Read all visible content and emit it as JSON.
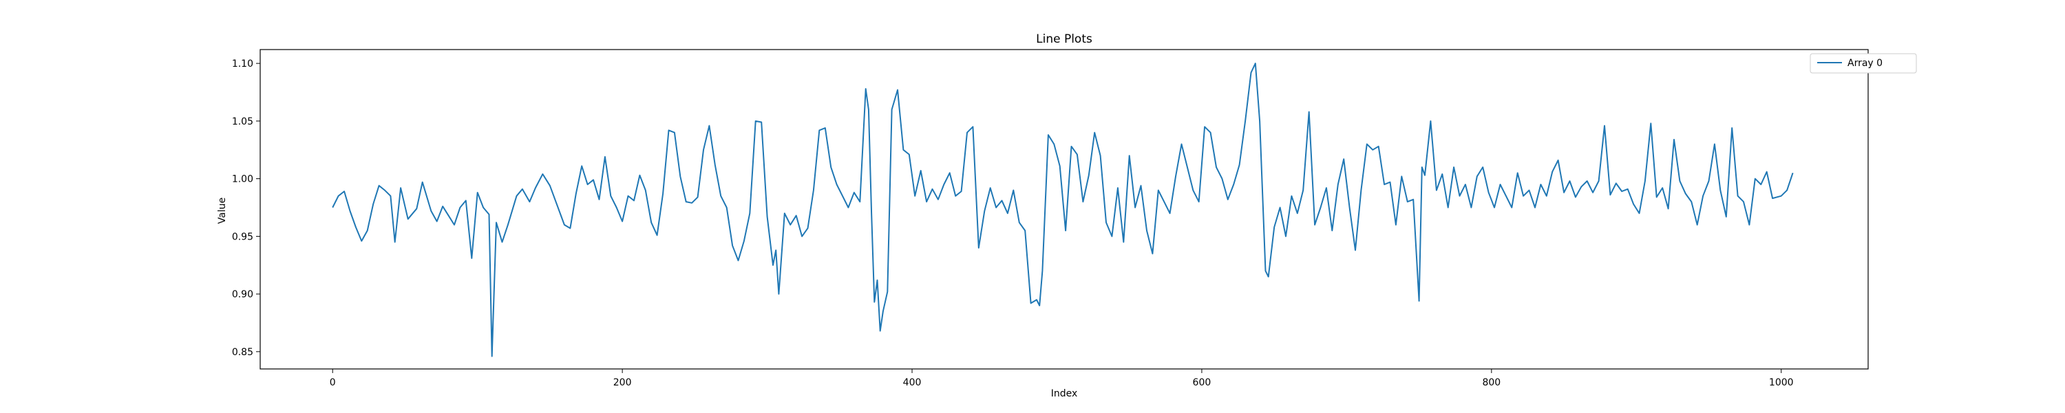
{
  "chart_data": {
    "type": "line",
    "title": "Line Plots",
    "xlabel": "Index",
    "ylabel": "Value",
    "xlim": [
      -50,
      1060
    ],
    "ylim": [
      0.835,
      1.112
    ],
    "xticks": [
      0,
      200,
      400,
      600,
      800,
      1000
    ],
    "yticks": [
      0.85,
      0.9,
      0.95,
      1.0,
      1.05,
      1.1
    ],
    "ytick_labels": [
      "0.85",
      "0.90",
      "0.95",
      "1.00",
      "1.05",
      "1.10"
    ],
    "grid": false,
    "legend_position": "top-right",
    "series": [
      {
        "name": "Array 0",
        "color": "#1f77b4",
        "points": [
          [
            0,
            0.975
          ],
          [
            4,
            0.985
          ],
          [
            8,
            0.989
          ],
          [
            12,
            0.972
          ],
          [
            16,
            0.958
          ],
          [
            20,
            0.946
          ],
          [
            24,
            0.955
          ],
          [
            28,
            0.978
          ],
          [
            32,
            0.994
          ],
          [
            36,
            0.99
          ],
          [
            40,
            0.985
          ],
          [
            43,
            0.945
          ],
          [
            47,
            0.992
          ],
          [
            52,
            0.965
          ],
          [
            58,
            0.974
          ],
          [
            62,
            0.997
          ],
          [
            68,
            0.972
          ],
          [
            72,
            0.963
          ],
          [
            76,
            0.976
          ],
          [
            80,
            0.968
          ],
          [
            84,
            0.96
          ],
          [
            88,
            0.975
          ],
          [
            92,
            0.981
          ],
          [
            96,
            0.931
          ],
          [
            100,
            0.988
          ],
          [
            104,
            0.975
          ],
          [
            108,
            0.969
          ],
          [
            110,
            0.846
          ],
          [
            113,
            0.962
          ],
          [
            117,
            0.945
          ],
          [
            121,
            0.96
          ],
          [
            127,
            0.985
          ],
          [
            131,
            0.991
          ],
          [
            136,
            0.98
          ],
          [
            140,
            0.992
          ],
          [
            145,
            1.004
          ],
          [
            150,
            0.994
          ],
          [
            155,
            0.977
          ],
          [
            160,
            0.96
          ],
          [
            164,
            0.957
          ],
          [
            168,
            0.987
          ],
          [
            172,
            1.011
          ],
          [
            176,
            0.995
          ],
          [
            180,
            0.999
          ],
          [
            184,
            0.982
          ],
          [
            188,
            1.019
          ],
          [
            192,
            0.985
          ],
          [
            196,
            0.975
          ],
          [
            200,
            0.963
          ],
          [
            204,
            0.985
          ],
          [
            208,
            0.981
          ],
          [
            212,
            1.003
          ],
          [
            216,
            0.99
          ],
          [
            220,
            0.962
          ],
          [
            224,
            0.951
          ],
          [
            228,
            0.987
          ],
          [
            232,
            1.042
          ],
          [
            236,
            1.04
          ],
          [
            240,
            1.002
          ],
          [
            244,
            0.98
          ],
          [
            248,
            0.979
          ],
          [
            252,
            0.984
          ],
          [
            256,
            1.025
          ],
          [
            260,
            1.046
          ],
          [
            264,
            1.012
          ],
          [
            268,
            0.985
          ],
          [
            272,
            0.975
          ],
          [
            276,
            0.942
          ],
          [
            280,
            0.929
          ],
          [
            284,
            0.946
          ],
          [
            288,
            0.97
          ],
          [
            292,
            1.05
          ],
          [
            296,
            1.049
          ],
          [
            300,
            0.967
          ],
          [
            304,
            0.925
          ],
          [
            306,
            0.938
          ],
          [
            308,
            0.9
          ],
          [
            312,
            0.97
          ],
          [
            316,
            0.96
          ],
          [
            320,
            0.968
          ],
          [
            324,
            0.95
          ],
          [
            328,
            0.957
          ],
          [
            332,
            0.99
          ],
          [
            336,
            1.042
          ],
          [
            340,
            1.044
          ],
          [
            344,
            1.01
          ],
          [
            348,
            0.995
          ],
          [
            352,
            0.985
          ],
          [
            356,
            0.975
          ],
          [
            360,
            0.988
          ],
          [
            364,
            0.98
          ],
          [
            368,
            1.078
          ],
          [
            370,
            1.06
          ],
          [
            372,
            0.97
          ],
          [
            374,
            0.893
          ],
          [
            376,
            0.912
          ],
          [
            378,
            0.868
          ],
          [
            380,
            0.885
          ],
          [
            383,
            0.902
          ],
          [
            386,
            1.06
          ],
          [
            390,
            1.077
          ],
          [
            394,
            1.025
          ],
          [
            398,
            1.021
          ],
          [
            402,
            0.985
          ],
          [
            406,
            1.007
          ],
          [
            410,
            0.98
          ],
          [
            414,
            0.991
          ],
          [
            418,
            0.982
          ],
          [
            422,
            0.995
          ],
          [
            426,
            1.005
          ],
          [
            430,
            0.985
          ],
          [
            434,
            0.989
          ],
          [
            438,
            1.04
          ],
          [
            442,
            1.045
          ],
          [
            446,
            0.94
          ],
          [
            450,
            0.972
          ],
          [
            454,
            0.992
          ],
          [
            458,
            0.975
          ],
          [
            462,
            0.981
          ],
          [
            466,
            0.97
          ],
          [
            470,
            0.99
          ],
          [
            474,
            0.962
          ],
          [
            478,
            0.955
          ],
          [
            482,
            0.892
          ],
          [
            486,
            0.895
          ],
          [
            488,
            0.89
          ],
          [
            490,
            0.92
          ],
          [
            494,
            1.038
          ],
          [
            498,
            1.03
          ],
          [
            502,
            1.011
          ],
          [
            506,
            0.955
          ],
          [
            510,
            1.028
          ],
          [
            514,
            1.021
          ],
          [
            518,
            0.98
          ],
          [
            522,
            1.003
          ],
          [
            526,
            1.04
          ],
          [
            530,
            1.02
          ],
          [
            534,
            0.962
          ],
          [
            538,
            0.95
          ],
          [
            542,
            0.992
          ],
          [
            546,
            0.945
          ],
          [
            550,
            1.02
          ],
          [
            554,
            0.975
          ],
          [
            558,
            0.994
          ],
          [
            562,
            0.955
          ],
          [
            566,
            0.935
          ],
          [
            570,
            0.99
          ],
          [
            574,
            0.98
          ],
          [
            578,
            0.97
          ],
          [
            582,
            1.002
          ],
          [
            586,
            1.03
          ],
          [
            590,
            1.01
          ],
          [
            594,
            0.99
          ],
          [
            598,
            0.98
          ],
          [
            602,
            1.045
          ],
          [
            606,
            1.04
          ],
          [
            610,
            1.01
          ],
          [
            614,
            1.0
          ],
          [
            618,
            0.982
          ],
          [
            622,
            0.995
          ],
          [
            626,
            1.012
          ],
          [
            630,
            1.05
          ],
          [
            634,
            1.092
          ],
          [
            637,
            1.1
          ],
          [
            640,
            1.05
          ],
          [
            642,
            0.985
          ],
          [
            644,
            0.92
          ],
          [
            646,
            0.915
          ],
          [
            650,
            0.958
          ],
          [
            654,
            0.975
          ],
          [
            658,
            0.95
          ],
          [
            662,
            0.985
          ],
          [
            666,
            0.97
          ],
          [
            670,
            0.99
          ],
          [
            674,
            1.058
          ],
          [
            678,
            0.96
          ],
          [
            682,
            0.975
          ],
          [
            686,
            0.992
          ],
          [
            690,
            0.955
          ],
          [
            694,
            0.995
          ],
          [
            698,
            1.017
          ],
          [
            702,
            0.975
          ],
          [
            706,
            0.938
          ],
          [
            710,
            0.99
          ],
          [
            714,
            1.03
          ],
          [
            718,
            1.025
          ],
          [
            722,
            1.028
          ],
          [
            726,
            0.995
          ],
          [
            730,
            0.997
          ],
          [
            734,
            0.96
          ],
          [
            738,
            1.002
          ],
          [
            742,
            0.98
          ],
          [
            746,
            0.982
          ],
          [
            750,
            0.894
          ],
          [
            752,
            1.01
          ],
          [
            754,
            1.003
          ],
          [
            758,
            1.05
          ],
          [
            762,
            0.99
          ],
          [
            766,
            1.004
          ],
          [
            770,
            0.975
          ],
          [
            774,
            1.01
          ],
          [
            778,
            0.985
          ],
          [
            782,
            0.995
          ],
          [
            786,
            0.975
          ],
          [
            790,
            1.002
          ],
          [
            794,
            1.01
          ],
          [
            798,
            0.988
          ],
          [
            802,
            0.975
          ],
          [
            806,
            0.995
          ],
          [
            810,
            0.985
          ],
          [
            814,
            0.975
          ],
          [
            818,
            1.005
          ],
          [
            822,
            0.985
          ],
          [
            826,
            0.99
          ],
          [
            830,
            0.975
          ],
          [
            834,
            0.995
          ],
          [
            838,
            0.985
          ],
          [
            842,
            1.006
          ],
          [
            846,
            1.016
          ],
          [
            850,
            0.988
          ],
          [
            854,
            0.998
          ],
          [
            858,
            0.984
          ],
          [
            862,
            0.993
          ],
          [
            866,
            0.998
          ],
          [
            870,
            0.988
          ],
          [
            874,
            0.998
          ],
          [
            878,
            1.046
          ],
          [
            882,
            0.986
          ],
          [
            886,
            0.996
          ],
          [
            890,
            0.989
          ],
          [
            894,
            0.991
          ],
          [
            898,
            0.978
          ],
          [
            902,
            0.97
          ],
          [
            906,
            0.998
          ],
          [
            910,
            1.048
          ],
          [
            914,
            0.984
          ],
          [
            918,
            0.992
          ],
          [
            922,
            0.974
          ],
          [
            926,
            1.034
          ],
          [
            930,
            0.998
          ],
          [
            934,
            0.987
          ],
          [
            938,
            0.98
          ],
          [
            942,
            0.96
          ],
          [
            946,
            0.985
          ],
          [
            950,
            0.998
          ],
          [
            954,
            1.03
          ],
          [
            958,
            0.99
          ],
          [
            962,
            0.967
          ],
          [
            966,
            1.044
          ],
          [
            970,
            0.985
          ],
          [
            974,
            0.98
          ],
          [
            978,
            0.96
          ],
          [
            982,
            1.0
          ],
          [
            986,
            0.995
          ],
          [
            990,
            1.006
          ],
          [
            994,
            0.983
          ],
          [
            1000,
            0.985
          ],
          [
            1004,
            0.99
          ],
          [
            1008,
            1.005
          ]
        ]
      }
    ]
  }
}
